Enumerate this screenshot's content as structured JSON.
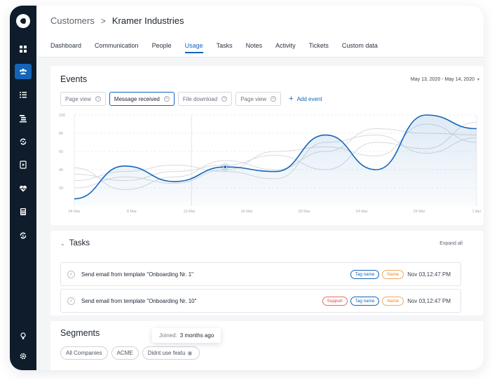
{
  "sidebar": {
    "logo": "app-logo",
    "items": [
      {
        "icon": "dashboard-grid-icon",
        "active": false
      },
      {
        "icon": "customers-group-icon",
        "active": true
      },
      {
        "icon": "checklist-icon",
        "active": false
      },
      {
        "icon": "hierarchy-list-icon",
        "active": false
      },
      {
        "icon": "sync-cycle-icon",
        "active": false
      },
      {
        "icon": "play-document-icon",
        "active": false
      },
      {
        "icon": "heart-pulse-icon",
        "active": false
      },
      {
        "icon": "calculator-icon",
        "active": false
      },
      {
        "icon": "refresh-money-icon",
        "active": false
      }
    ],
    "bottom": [
      {
        "icon": "lightbulb-icon"
      },
      {
        "icon": "settings-gear-icon"
      }
    ]
  },
  "breadcrumb": {
    "parent": "Customers",
    "separator": ">",
    "current": "Kramer Industries"
  },
  "tabs": [
    {
      "label": "Dashboard",
      "active": false
    },
    {
      "label": "Communication",
      "active": false
    },
    {
      "label": "People",
      "active": false
    },
    {
      "label": "Usage",
      "active": true
    },
    {
      "label": "Tasks",
      "active": false
    },
    {
      "label": "Notes",
      "active": false
    },
    {
      "label": "Activity",
      "active": false
    },
    {
      "label": "Tickets",
      "active": false
    },
    {
      "label": "Custom data",
      "active": false
    }
  ],
  "events": {
    "title": "Events",
    "date_range": "May 13, 2020 - May 14, 2020",
    "chips": [
      {
        "label": "Page view",
        "selected": false
      },
      {
        "label": "Message received",
        "selected": true
      },
      {
        "label": "File download",
        "selected": false
      },
      {
        "label": "Page view",
        "selected": false
      }
    ],
    "add_event_label": "Add event"
  },
  "chart_data": {
    "type": "line",
    "ylim": [
      0,
      100
    ],
    "y_ticks": [
      "20",
      "40",
      "60",
      "80",
      "100"
    ],
    "x_ticks": [
      "04 Mar",
      "8 Mar",
      "13 Mar",
      "16 Mar",
      "20 Mar",
      "24 Mar",
      "29 Mar",
      "1 Apr"
    ],
    "grid": true,
    "accent_color": "#1465b8",
    "series": [
      {
        "highlighted": true,
        "values": [
          8,
          44,
          27,
          43,
          38,
          78,
          40,
          100,
          85
        ]
      },
      {
        "highlighted": false,
        "values": [
          35,
          28,
          38,
          45,
          56,
          40,
          70,
          63,
          92
        ]
      },
      {
        "highlighted": false,
        "values": [
          20,
          32,
          25,
          40,
          60,
          65,
          55,
          90,
          70
        ]
      },
      {
        "highlighted": false,
        "values": [
          42,
          18,
          32,
          50,
          40,
          60,
          85,
          80,
          78
        ]
      },
      {
        "highlighted": false,
        "values": [
          28,
          38,
          45,
          38,
          30,
          70,
          78,
          58,
          75
        ]
      }
    ],
    "highlight_x_index": 3
  },
  "tasks": {
    "title": "Tasks",
    "expand_label": "Expand all",
    "items": [
      {
        "name": "Send email from template \"Onboarding Nr. 1\"",
        "tags": [
          {
            "label": "Tag name",
            "color": "blue"
          },
          {
            "label": "Name",
            "color": "orange"
          }
        ],
        "time": "Nov 03,12:47 PM"
      },
      {
        "name": "Send email from template \"Onboarding Nr. 10\"",
        "tags": [
          {
            "label": "Support",
            "color": "red"
          },
          {
            "label": "Tag name",
            "color": "blue"
          },
          {
            "label": "Name",
            "color": "orange"
          }
        ],
        "time": "Nov 03,12:47 PM"
      }
    ]
  },
  "segments": {
    "title": "Segments",
    "chips": [
      "All Companies",
      "ACME",
      "Didnt use featu"
    ],
    "tooltip": {
      "label": "Joined:",
      "value": "3 months ago"
    }
  }
}
